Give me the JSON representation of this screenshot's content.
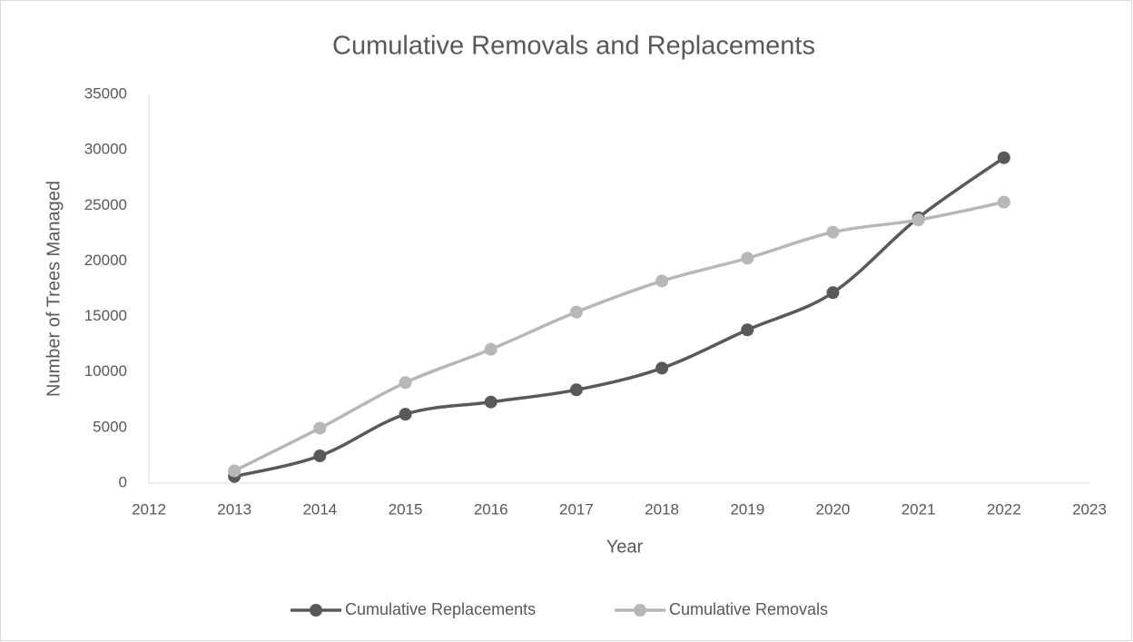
{
  "chart_data": {
    "type": "line",
    "title": "Cumulative Removals and Replacements",
    "x_label": "Year",
    "y_label": "Number of Trees Managed",
    "x": [
      2013,
      2014,
      2015,
      2016,
      2017,
      2018,
      2019,
      2020,
      2021,
      2022
    ],
    "series": [
      {
        "name": "Cumulative Replacements",
        "color": "#595959",
        "values": [
          600,
          2450,
          6200,
          7300,
          8400,
          10350,
          13800,
          17150,
          23900,
          29300
        ]
      },
      {
        "name": "Cumulative Removals",
        "color": "#b7b7b7",
        "values": [
          1100,
          4950,
          9050,
          12050,
          15400,
          18200,
          20250,
          22600,
          23700,
          25300
        ]
      }
    ],
    "xlim": [
      2012,
      2023
    ],
    "xticks": [
      2012,
      2013,
      2014,
      2015,
      2016,
      2017,
      2018,
      2019,
      2020,
      2021,
      2022,
      2023
    ],
    "ylim": [
      0,
      35000
    ],
    "yticks": [
      0,
      5000,
      10000,
      15000,
      20000,
      25000,
      30000,
      35000
    ],
    "smooth": true,
    "grid": false,
    "legend": "bottom"
  }
}
